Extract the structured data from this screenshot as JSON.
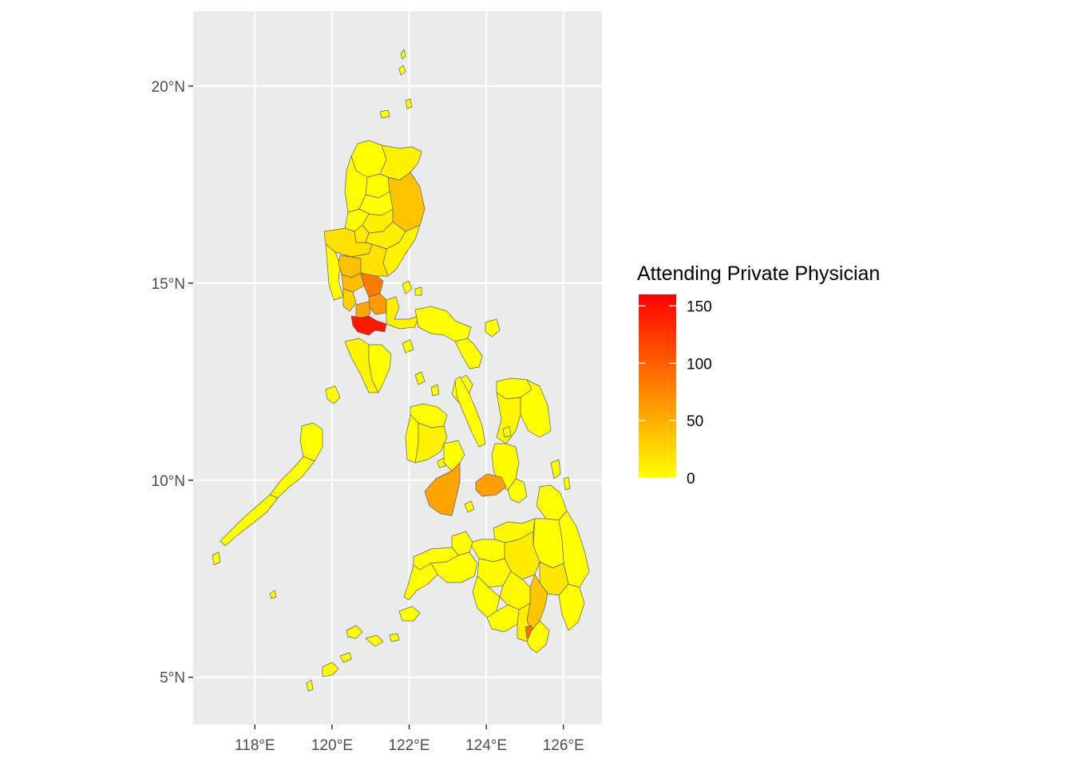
{
  "chart_data": {
    "type": "choropleth",
    "x_axis": {
      "ticks": [
        {
          "value": 118,
          "label": "118°E"
        },
        {
          "value": 120,
          "label": "120°E"
        },
        {
          "value": 122,
          "label": "122°E"
        },
        {
          "value": 124,
          "label": "124°E"
        },
        {
          "value": 126,
          "label": "126°E"
        }
      ]
    },
    "y_axis": {
      "ticks": [
        {
          "value": 5,
          "label": "5°N"
        },
        {
          "value": 10,
          "label": "10°N"
        },
        {
          "value": 15,
          "label": "15°N"
        },
        {
          "value": 20,
          "label": "20°N"
        }
      ]
    },
    "xlim": [
      116.4,
      127.0
    ],
    "ylim": [
      3.8,
      21.9
    ],
    "grid": true,
    "legend": {
      "title": "Attending Private Physician",
      "placement": "right",
      "color_low": "#FFFF00",
      "color_high": "#FF0000",
      "range": [
        0,
        160
      ],
      "breaks": [
        0,
        50,
        100,
        150
      ],
      "break_labels": [
        "0",
        "50",
        "100",
        "150"
      ]
    },
    "colors": {
      "panel_background": "#EBEBEB",
      "grid_line": "#FFFFFF",
      "border": "#5E5E5E"
    }
  }
}
